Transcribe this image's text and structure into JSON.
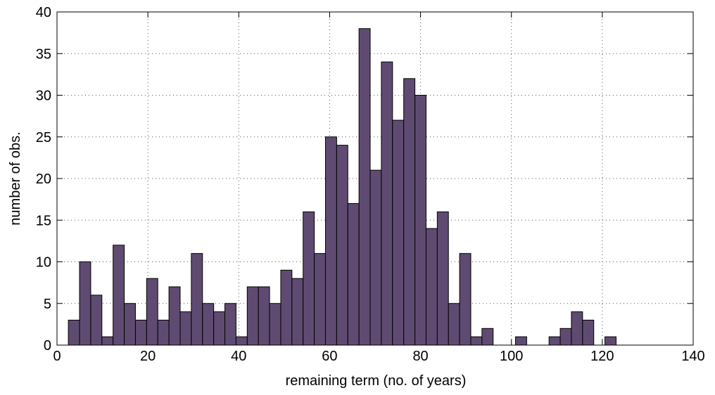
{
  "chart_data": {
    "type": "histogram",
    "xlabel": "remaining term (no. of years)",
    "ylabel": "number of obs.",
    "color": "#5f4b72",
    "bins": [
      2.5,
      4.96,
      7.42,
      9.88,
      12.34,
      14.8,
      17.26,
      19.72,
      22.18,
      24.64,
      27.1,
      29.56,
      32.02,
      34.48,
      36.94,
      39.4,
      41.86,
      44.32,
      46.78,
      49.24,
      51.7,
      54.16,
      56.62,
      59.08,
      61.54,
      64.0,
      66.46,
      68.92,
      71.38,
      73.84,
      76.3,
      78.76,
      81.22,
      83.68,
      86.14,
      88.6,
      91.06,
      93.52,
      95.98,
      98.44,
      100.9,
      103.36,
      105.82,
      108.28,
      110.74,
      113.2,
      115.66,
      118.12,
      120.58,
      123.04
    ],
    "values": [
      3,
      10,
      6,
      1,
      12,
      5,
      3,
      8,
      3,
      7,
      4,
      11,
      5,
      4,
      5,
      1,
      7,
      7,
      5,
      9,
      8,
      16,
      11,
      25,
      24,
      17,
      38,
      21,
      34,
      27,
      32,
      30,
      14,
      16,
      5,
      11,
      1,
      2,
      0,
      0,
      1,
      0,
      0,
      1,
      2,
      4,
      3,
      0,
      1
    ],
    "xlim": [
      0,
      140
    ],
    "xticks": [
      0,
      20,
      40,
      60,
      80,
      100,
      120,
      140
    ],
    "ylim": [
      0,
      40
    ],
    "yticks": [
      0,
      5,
      10,
      15,
      20,
      25,
      30,
      35,
      40
    ],
    "grid": true
  }
}
